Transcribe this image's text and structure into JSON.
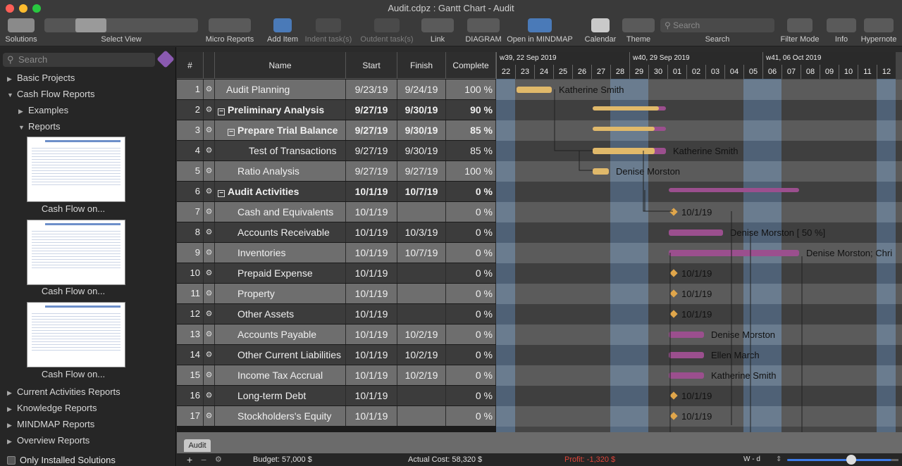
{
  "window": {
    "title": "Audit.cdpz : Gantt Chart - Audit"
  },
  "toolbar": {
    "solutions": "Solutions",
    "select_view": "Select View",
    "micro_reports": "Micro Reports",
    "add_item": "Add Item",
    "indent": "Indent task(s)",
    "outdent": "Outdent task(s)",
    "link": "Link",
    "diagram": "DIAGRAM",
    "open_mindmap": "Open in MINDMAP",
    "calendar": "Calendar",
    "theme": "Theme",
    "search_placeholder": "Search",
    "search": "Search",
    "filter_mode": "Filter Mode",
    "info": "Info",
    "hypernote": "Hypernote"
  },
  "sidebar": {
    "search_placeholder": "Search",
    "items": [
      "Basic Projects",
      "Cash Flow Reports",
      "Examples",
      "Reports",
      "Current Activities Reports",
      "Knowledge Reports",
      "MINDMAP Reports",
      "Overview Reports"
    ],
    "thumb_caption": "Cash Flow on...",
    "only_installed": "Only Installed Solutions"
  },
  "grid": {
    "headers": {
      "num": "#",
      "name": "Name",
      "start": "Start",
      "finish": "Finish",
      "complete": "Complete"
    },
    "rows": [
      {
        "num": "1",
        "name": "Audit Planning",
        "start": "9/23/19",
        "finish": "9/24/19",
        "complete": "100 %"
      },
      {
        "num": "2",
        "name": "Preliminary Analysis",
        "start": "9/27/19",
        "finish": "9/30/19",
        "complete": "90 %"
      },
      {
        "num": "3",
        "name": "Prepare Trial Balance",
        "start": "9/27/19",
        "finish": "9/30/19",
        "complete": "85 %"
      },
      {
        "num": "4",
        "name": "Test of Transactions",
        "start": "9/27/19",
        "finish": "9/30/19",
        "complete": "85 %"
      },
      {
        "num": "5",
        "name": "Ratio Analysis",
        "start": "9/27/19",
        "finish": "9/27/19",
        "complete": "100 %"
      },
      {
        "num": "6",
        "name": "Audit Activities",
        "start": "10/1/19",
        "finish": "10/7/19",
        "complete": "0 %"
      },
      {
        "num": "7",
        "name": "Cash and Equivalents",
        "start": "10/1/19",
        "finish": "",
        "complete": "0 %"
      },
      {
        "num": "8",
        "name": "Accounts Receivable",
        "start": "10/1/19",
        "finish": "10/3/19",
        "complete": "0 %"
      },
      {
        "num": "9",
        "name": "Inventories",
        "start": "10/1/19",
        "finish": "10/7/19",
        "complete": "0 %"
      },
      {
        "num": "10",
        "name": "Prepaid Expense",
        "start": "10/1/19",
        "finish": "",
        "complete": "0 %"
      },
      {
        "num": "11",
        "name": "Property",
        "start": "10/1/19",
        "finish": "",
        "complete": "0 %"
      },
      {
        "num": "12",
        "name": "Other Assets",
        "start": "10/1/19",
        "finish": "",
        "complete": "0 %"
      },
      {
        "num": "13",
        "name": "Accounts Payable",
        "start": "10/1/19",
        "finish": "10/2/19",
        "complete": "0 %"
      },
      {
        "num": "14",
        "name": "Other Current Liabilities",
        "start": "10/1/19",
        "finish": "10/2/19",
        "complete": "0 %"
      },
      {
        "num": "15",
        "name": "Income Tax  Accrual",
        "start": "10/1/19",
        "finish": "10/2/19",
        "complete": "0 %"
      },
      {
        "num": "16",
        "name": "Long-term Debt",
        "start": "10/1/19",
        "finish": "",
        "complete": "0 %"
      },
      {
        "num": "17",
        "name": "Stockholders's Equity",
        "start": "10/1/19",
        "finish": "",
        "complete": "0 %"
      }
    ]
  },
  "gantt": {
    "weeks": [
      "w39, 22 Sep 2019",
      "w40, 29 Sep 2019",
      "w41, 06 Oct 2019"
    ],
    "days": [
      "22",
      "23",
      "24",
      "25",
      "26",
      "27",
      "28",
      "29",
      "30",
      "01",
      "02",
      "03",
      "04",
      "05",
      "06",
      "07",
      "08",
      "09",
      "10",
      "11",
      "12"
    ],
    "labels": {
      "r1": "Katherine Smith",
      "r4": "Katherine Smith",
      "r5": "Denise Morston",
      "r7": "10/1/19",
      "r8": "Denise Morston [ 50 %]",
      "r9": "Denise Morston; Chri",
      "r10": "10/1/19",
      "r11": "10/1/19",
      "r12": "10/1/19",
      "r13": "Denise Morston",
      "r14": "Ellen March",
      "r15": "Katherine Smith",
      "r16": "10/1/19",
      "r17": "10/1/19"
    },
    "colors": {
      "done": "#e0b96a",
      "todo": "#9b4f8e",
      "milestone": "#e0a64b",
      "weekend": "#566a80"
    }
  },
  "tabs": {
    "audit": "Audit"
  },
  "status": {
    "budget": "Budget: 57,000 $",
    "actual_cost": "Actual Cost: 58,320 $",
    "profit": "Profit: -1,320 $",
    "scale": "W - d",
    "profit_color": "#e0453a"
  }
}
